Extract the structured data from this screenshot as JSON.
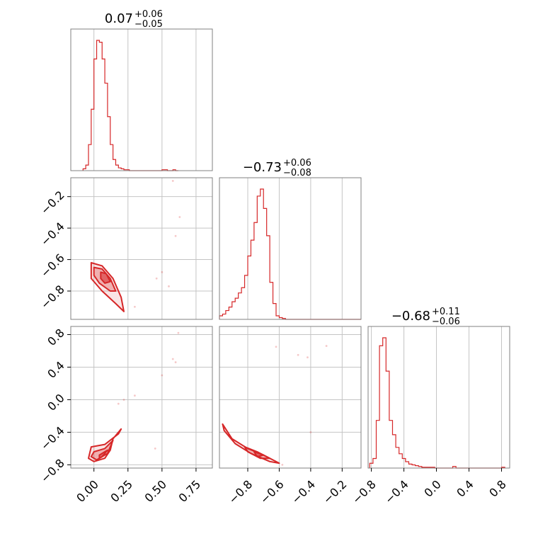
{
  "colors": {
    "line": "#d62728",
    "fill": "#d62728",
    "frame": "#808080",
    "grid": "#c4c4c4",
    "text": "#000000"
  },
  "chart_data": [
    {
      "type": "corner",
      "panel": "hist-1",
      "title": {
        "base": "0.07",
        "sup": "+0.06",
        "sub": "−0.05"
      },
      "xlim": [
        -0.17,
        0.87
      ],
      "grid_x": [
        0.0,
        0.25,
        0.5,
        0.75
      ],
      "grid_y": [],
      "bin_edges": [
        -0.08,
        -0.06,
        -0.04,
        -0.02,
        0.0,
        0.02,
        0.04,
        0.06,
        0.08,
        0.1,
        0.12,
        0.14,
        0.16,
        0.18,
        0.2,
        0.22,
        0.24,
        0.26,
        0.28,
        0.3,
        0.32,
        0.5,
        0.52,
        0.54,
        0.56,
        0.58,
        0.6,
        0.62
      ],
      "counts": [
        2,
        6,
        28,
        66,
        120,
        140,
        138,
        120,
        94,
        58,
        28,
        12,
        6,
        3,
        2,
        1,
        1,
        0,
        0,
        0,
        0,
        1,
        1,
        0,
        0,
        1,
        0
      ],
      "xlabel": "",
      "ylabel": ""
    },
    {
      "type": "scatter",
      "panel": "joint-1-2",
      "xlim": [
        -0.17,
        0.87
      ],
      "ylim": [
        -0.98,
        -0.08
      ],
      "yticks": [
        -0.2,
        -0.4,
        -0.6,
        -0.8
      ],
      "ytick_labels": [
        "−0.2",
        "−0.4",
        "−0.6",
        "−0.8"
      ],
      "grid_x": [
        0.0,
        0.25,
        0.5,
        0.75
      ],
      "contours": [
        {
          "level": "outer",
          "points": [
            [
              -0.02,
              -0.62
            ],
            [
              0.06,
              -0.64
            ],
            [
              0.14,
              -0.72
            ],
            [
              0.2,
              -0.84
            ],
            [
              0.22,
              -0.93
            ],
            [
              0.16,
              -0.88
            ],
            [
              0.06,
              -0.8
            ],
            [
              -0.02,
              -0.72
            ]
          ]
        },
        {
          "level": "mid",
          "points": [
            [
              0.0,
              -0.65
            ],
            [
              0.06,
              -0.66
            ],
            [
              0.12,
              -0.72
            ],
            [
              0.16,
              -0.8
            ],
            [
              0.12,
              -0.8
            ],
            [
              0.04,
              -0.75
            ],
            [
              0.0,
              -0.7
            ]
          ]
        },
        {
          "level": "inner",
          "points": [
            [
              0.05,
              -0.68
            ],
            [
              0.09,
              -0.69
            ],
            [
              0.12,
              -0.74
            ],
            [
              0.08,
              -0.75
            ],
            [
              0.05,
              -0.72
            ]
          ]
        }
      ],
      "outliers": [
        [
          0.6,
          -0.45
        ],
        [
          0.63,
          -0.33
        ],
        [
          0.58,
          -0.1
        ],
        [
          0.55,
          -0.77
        ],
        [
          0.5,
          -0.68
        ],
        [
          0.46,
          -0.72
        ],
        [
          0.3,
          -0.9
        ]
      ]
    },
    {
      "type": "corner",
      "panel": "hist-2",
      "title": {
        "base": "−0.73",
        "sup": "+0.06",
        "sub": "−0.08"
      },
      "xlim": [
        -0.98,
        -0.08
      ],
      "grid_x": [
        -0.8,
        -0.6,
        -0.4,
        -0.2
      ],
      "bin_edges": [
        -0.98,
        -0.96,
        -0.94,
        -0.92,
        -0.9,
        -0.88,
        -0.86,
        -0.84,
        -0.82,
        -0.8,
        -0.78,
        -0.76,
        -0.74,
        -0.72,
        -0.7,
        -0.68,
        -0.66,
        -0.64,
        -0.62,
        -0.6,
        -0.58,
        -0.56,
        -0.08
      ],
      "counts": [
        4,
        6,
        10,
        14,
        20,
        24,
        30,
        36,
        50,
        72,
        90,
        110,
        140,
        148,
        126,
        95,
        42,
        18,
        4,
        2,
        1,
        0
      ],
      "xlabel": "",
      "ylabel": ""
    },
    {
      "type": "scatter",
      "panel": "joint-1-3",
      "xlim": [
        -0.17,
        0.87
      ],
      "ylim": [
        -0.84,
        0.9
      ],
      "xticks": [
        0.0,
        0.25,
        0.5,
        0.75
      ],
      "xtick_labels": [
        "0.00",
        "0.25",
        "0.50",
        "0.75"
      ],
      "yticks": [
        0.8,
        0.4,
        0.0,
        -0.4,
        -0.8
      ],
      "ytick_labels": [
        "0.8",
        "0.4",
        "0.0",
        "−0.4",
        "−0.8"
      ],
      "contours": [
        {
          "level": "outer",
          "points": [
            [
              -0.02,
              -0.58
            ],
            [
              0.08,
              -0.55
            ],
            [
              0.18,
              -0.42
            ],
            [
              0.2,
              -0.36
            ],
            [
              0.14,
              -0.48
            ],
            [
              0.12,
              -0.62
            ],
            [
              0.08,
              -0.72
            ],
            [
              0.0,
              -0.76
            ],
            [
              -0.04,
              -0.72
            ]
          ]
        },
        {
          "level": "mid",
          "points": [
            [
              0.0,
              -0.64
            ],
            [
              0.08,
              -0.6
            ],
            [
              0.14,
              -0.5
            ],
            [
              0.1,
              -0.66
            ],
            [
              0.02,
              -0.74
            ],
            [
              -0.02,
              -0.7
            ]
          ]
        },
        {
          "level": "inner",
          "points": [
            [
              0.04,
              -0.68
            ],
            [
              0.08,
              -0.64
            ],
            [
              0.1,
              -0.62
            ],
            [
              0.06,
              -0.7
            ],
            [
              0.04,
              -0.72
            ]
          ]
        }
      ],
      "outliers": [
        [
          0.62,
          0.82
        ],
        [
          0.6,
          0.46
        ],
        [
          0.58,
          0.5
        ],
        [
          0.5,
          0.3
        ],
        [
          0.3,
          0.05
        ],
        [
          0.22,
          0.0
        ],
        [
          0.18,
          -0.05
        ],
        [
          0.45,
          -0.6
        ]
      ]
    },
    {
      "type": "scatter",
      "panel": "joint-2-3",
      "xlim": [
        -0.98,
        -0.08
      ],
      "ylim": [
        -0.84,
        0.9
      ],
      "xticks": [
        -0.8,
        -0.6,
        -0.4,
        -0.2
      ],
      "xtick_labels": [
        "−0.8",
        "−0.6",
        "−0.4",
        "−0.2"
      ],
      "grid_y": [
        0.8,
        0.4,
        0.0,
        -0.4
      ],
      "contours": [
        {
          "level": "outer",
          "points": [
            [
              -0.96,
              -0.3
            ],
            [
              -0.9,
              -0.48
            ],
            [
              -0.8,
              -0.6
            ],
            [
              -0.7,
              -0.68
            ],
            [
              -0.6,
              -0.78
            ],
            [
              -0.66,
              -0.76
            ],
            [
              -0.78,
              -0.66
            ],
            [
              -0.88,
              -0.54
            ],
            [
              -0.95,
              -0.38
            ]
          ]
        },
        {
          "level": "mid",
          "points": [
            [
              -0.82,
              -0.58
            ],
            [
              -0.74,
              -0.64
            ],
            [
              -0.66,
              -0.72
            ],
            [
              -0.72,
              -0.72
            ],
            [
              -0.8,
              -0.64
            ]
          ]
        },
        {
          "level": "inner",
          "points": [
            [
              -0.76,
              -0.64
            ],
            [
              -0.7,
              -0.68
            ],
            [
              -0.74,
              -0.7
            ]
          ]
        }
      ],
      "outliers": [
        [
          -0.4,
          -0.4
        ],
        [
          -0.48,
          0.55
        ],
        [
          -0.42,
          0.52
        ],
        [
          -0.3,
          0.66
        ],
        [
          -0.62,
          0.65
        ],
        [
          -0.58,
          -0.8
        ]
      ]
    },
    {
      "type": "corner",
      "panel": "hist-3",
      "title": {
        "base": "−0.68",
        "sup": "+0.11",
        "sub": "−0.06"
      },
      "xlim": [
        -0.84,
        0.9
      ],
      "xticks": [
        -0.8,
        -0.4,
        0.0,
        0.4,
        0.8
      ],
      "xtick_labels": [
        "−0.8",
        "−0.4",
        "0.0",
        "0.4",
        "0.8"
      ],
      "bin_edges": [
        -0.82,
        -0.78,
        -0.74,
        -0.7,
        -0.66,
        -0.62,
        -0.58,
        -0.54,
        -0.5,
        -0.46,
        -0.42,
        -0.38,
        -0.34,
        -0.3,
        -0.26,
        -0.22,
        -0.18,
        -0.14,
        -0.1,
        -0.06,
        -0.02,
        0.0,
        0.2,
        0.24,
        0.8,
        0.84
      ],
      "counts": [
        6,
        12,
        60,
        154,
        164,
        122,
        60,
        42,
        26,
        18,
        12,
        8,
        5,
        4,
        3,
        2,
        1,
        1,
        1,
        1,
        0,
        0,
        2,
        0,
        1
      ],
      "xlabel": "",
      "ylabel": ""
    }
  ]
}
